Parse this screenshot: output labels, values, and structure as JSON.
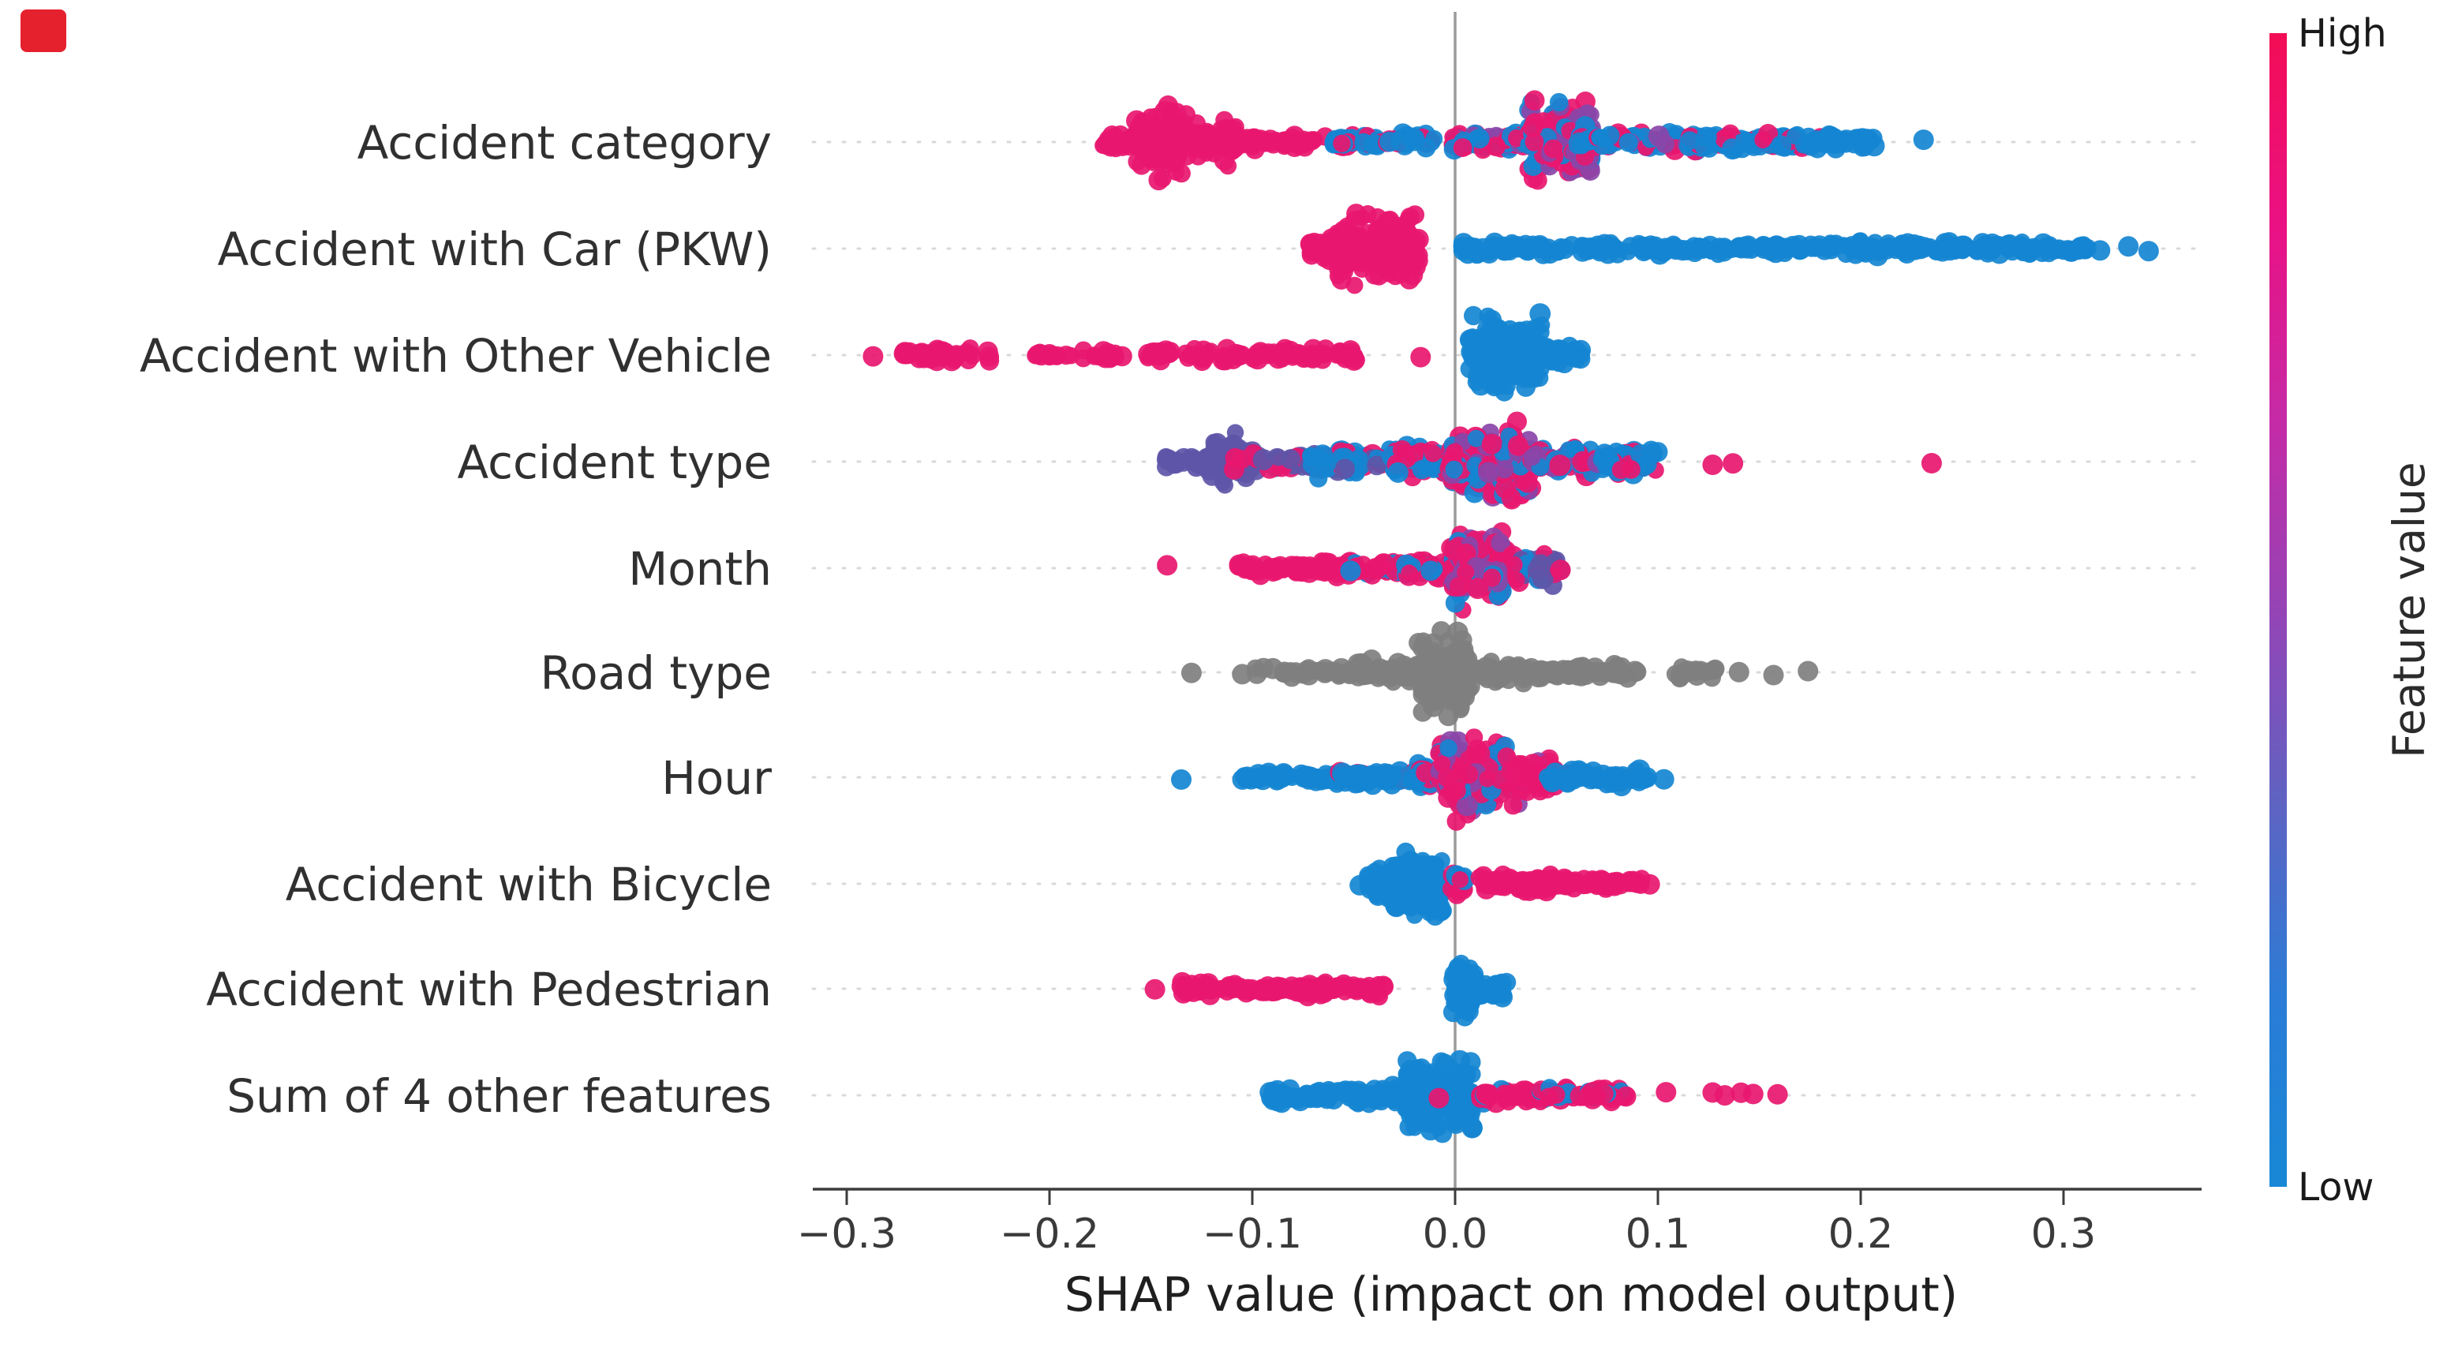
{
  "figure": {
    "corner_marker_color": "#e5212d"
  },
  "chart_data": {
    "type": "beeswarm",
    "title": "",
    "xlabel": "SHAP value (impact on model output)",
    "ylabel": "",
    "x_ticks": [
      -0.3,
      -0.2,
      -0.1,
      0.0,
      0.1,
      0.2,
      0.3
    ],
    "x_tick_labels": [
      "−0.3",
      "−0.2",
      "−0.1",
      "0.0",
      "0.1",
      "0.2",
      "0.3"
    ],
    "xlim": [
      -0.317,
      0.368
    ],
    "grid": "dotted-horizontal-per-feature",
    "zero_line_x": 0.0,
    "colorbar": {
      "label": "Feature value",
      "high_label": "High",
      "low_label": "Low",
      "gradient_top_to_bottom": [
        "#f30d55",
        "#ea1184",
        "#c62aa6",
        "#9544b6",
        "#5f63c2",
        "#2b7cd6",
        "#1887d6"
      ]
    },
    "colors": {
      "pink": "#e8176f",
      "blue": "#1585d1",
      "purple": "#8a45a8",
      "violet": "#5e55a8",
      "gray": "#7f7f7f",
      "axis": "#3c3c3c",
      "zero_line": "#9b9b9b",
      "gridline": "#d9d9d9"
    },
    "features": [
      {
        "name": "Accident category",
        "blobs": [
          {
            "x": -0.145,
            "hw": 0.013,
            "sy": 58,
            "n": 110,
            "c": "pink"
          },
          {
            "x": -0.118,
            "hw": 0.01,
            "sy": 34,
            "n": 55,
            "c": "pink"
          },
          {
            "x": -0.16,
            "hw": 0.014,
            "sy": 14,
            "n": 30,
            "c": "pink"
          },
          {
            "x": -0.09,
            "hw": 0.04,
            "sy": 12,
            "n": 80,
            "c": "pink"
          },
          {
            "x": -0.035,
            "hw": 0.025,
            "sy": 11,
            "n": 60,
            "c": {
              "blue": 0.75,
              "pink": 0.25
            }
          },
          {
            "x": 0.02,
            "hw": 0.022,
            "sy": 16,
            "n": 70,
            "c": {
              "pink": 0.45,
              "blue": 0.35,
              "purple": 0.2
            }
          },
          {
            "x": 0.052,
            "hw": 0.016,
            "sy": 64,
            "n": 150,
            "c": {
              "purple": 0.4,
              "pink": 0.35,
              "blue": 0.25
            }
          },
          {
            "x": 0.09,
            "hw": 0.03,
            "sy": 16,
            "n": 90,
            "c": {
              "blue": 0.6,
              "pink": 0.3,
              "purple": 0.1
            }
          },
          {
            "x": 0.15,
            "hw": 0.035,
            "sy": 13,
            "n": 90,
            "c": {
              "blue": 0.8,
              "pink": 0.2
            }
          },
          {
            "x": 0.195,
            "hw": 0.012,
            "sy": 11,
            "n": 30,
            "c": "blue"
          }
        ],
        "dots": [
          [
            -0.172,
            "pink"
          ],
          [
            0.231,
            "blue"
          ]
        ]
      },
      {
        "name": "Accident with Car (PKW)",
        "blobs": [
          {
            "x": -0.038,
            "hw": 0.02,
            "sy": 58,
            "n": 150,
            "c": "pink"
          },
          {
            "x": -0.06,
            "hw": 0.012,
            "sy": 18,
            "n": 30,
            "c": "pink"
          },
          {
            "x": 0.03,
            "hw": 0.028,
            "sy": 10,
            "n": 55,
            "c": "blue"
          },
          {
            "x": 0.09,
            "hw": 0.03,
            "sy": 10,
            "n": 55,
            "c": "blue"
          },
          {
            "x": 0.15,
            "hw": 0.03,
            "sy": 10,
            "n": 55,
            "c": "blue"
          },
          {
            "x": 0.21,
            "hw": 0.03,
            "sy": 11,
            "n": 60,
            "c": "blue"
          },
          {
            "x": 0.265,
            "hw": 0.025,
            "sy": 11,
            "n": 55,
            "c": "blue"
          },
          {
            "x": 0.3,
            "hw": 0.012,
            "sy": 9,
            "n": 20,
            "c": "blue"
          }
        ],
        "dots": [
          [
            0.318,
            "blue"
          ],
          [
            0.332,
            "blue"
          ],
          [
            0.342,
            "blue"
          ]
        ]
      },
      {
        "name": "Accident with Other Vehicle",
        "blobs": [
          {
            "x": -0.25,
            "hw": 0.022,
            "sy": 10,
            "n": 35,
            "c": "pink"
          },
          {
            "x": -0.185,
            "hw": 0.024,
            "sy": 9,
            "n": 30,
            "c": "pink"
          },
          {
            "x": -0.1,
            "hw": 0.052,
            "sy": 11,
            "n": 85,
            "c": "pink"
          },
          {
            "x": 0.025,
            "hw": 0.018,
            "sy": 60,
            "n": 160,
            "c": "blue"
          },
          {
            "x": 0.052,
            "hw": 0.01,
            "sy": 18,
            "n": 30,
            "c": "blue"
          }
        ],
        "dots": [
          [
            -0.287,
            "pink"
          ],
          [
            -0.017,
            "pink"
          ]
        ]
      },
      {
        "name": "Accident type",
        "blobs": [
          {
            "x": -0.11,
            "hw": 0.013,
            "sy": 40,
            "n": 60,
            "c": "violet"
          },
          {
            "x": -0.125,
            "hw": 0.018,
            "sy": 14,
            "n": 35,
            "c": "violet"
          },
          {
            "x": -0.08,
            "hw": 0.03,
            "sy": 14,
            "n": 60,
            "c": {
              "violet": 0.8,
              "pink": 0.2
            }
          },
          {
            "x": -0.05,
            "hw": 0.022,
            "sy": 26,
            "n": 70,
            "c": {
              "blue": 0.6,
              "pink": 0.25,
              "violet": 0.15
            }
          },
          {
            "x": -0.015,
            "hw": 0.015,
            "sy": 30,
            "n": 60,
            "c": {
              "blue": 0.5,
              "pink": 0.5
            }
          },
          {
            "x": 0.018,
            "hw": 0.02,
            "sy": 66,
            "n": 150,
            "c": {
              "pink": 0.6,
              "purple": 0.2,
              "blue": 0.2
            }
          },
          {
            "x": 0.055,
            "hw": 0.018,
            "sy": 22,
            "n": 70,
            "c": {
              "pink": 0.5,
              "blue": 0.3,
              "purple": 0.2
            }
          },
          {
            "x": 0.085,
            "hw": 0.015,
            "sy": 20,
            "n": 50,
            "c": {
              "blue": 0.7,
              "pink": 0.3
            }
          }
        ],
        "dots": [
          [
            0.127,
            "pink"
          ],
          [
            0.137,
            "pink"
          ],
          [
            0.235,
            "pink"
          ]
        ]
      },
      {
        "name": "Month",
        "blobs": [
          {
            "x": -0.085,
            "hw": 0.022,
            "sy": 10,
            "n": 50,
            "c": "pink"
          },
          {
            "x": -0.045,
            "hw": 0.02,
            "sy": 13,
            "n": 55,
            "c": {
              "pink": 0.8,
              "blue": 0.2
            }
          },
          {
            "x": -0.012,
            "hw": 0.013,
            "sy": 17,
            "n": 45,
            "c": {
              "pink": 0.6,
              "blue": 0.4
            }
          },
          {
            "x": 0.012,
            "hw": 0.014,
            "sy": 62,
            "n": 140,
            "c": {
              "pink": 0.55,
              "purple": 0.3,
              "blue": 0.15
            }
          },
          {
            "x": 0.04,
            "hw": 0.012,
            "sy": 26,
            "n": 50,
            "c": {
              "violet": 0.5,
              "pink": 0.3,
              "blue": 0.2
            }
          }
        ],
        "dots": [
          [
            -0.142,
            "pink"
          ],
          [
            0.052,
            "pink"
          ]
        ]
      },
      {
        "name": "Road type",
        "blobs": [
          {
            "x": -0.075,
            "hw": 0.025,
            "sy": 9,
            "n": 40,
            "c": "gray"
          },
          {
            "x": -0.03,
            "hw": 0.018,
            "sy": 20,
            "n": 60,
            "c": "gray"
          },
          {
            "x": -0.005,
            "hw": 0.013,
            "sy": 62,
            "n": 150,
            "c": "gray"
          },
          {
            "x": 0.025,
            "hw": 0.02,
            "sy": 16,
            "n": 60,
            "c": "gray"
          },
          {
            "x": 0.065,
            "hw": 0.025,
            "sy": 12,
            "n": 60,
            "c": "gray"
          },
          {
            "x": 0.12,
            "hw": 0.012,
            "sy": 9,
            "n": 18,
            "c": "gray"
          }
        ],
        "dots": [
          [
            -0.13,
            "gray"
          ],
          [
            -0.105,
            "gray"
          ],
          [
            0.14,
            "gray"
          ],
          [
            0.157,
            "gray"
          ],
          [
            0.174,
            "gray"
          ]
        ]
      },
      {
        "name": "Hour",
        "blobs": [
          {
            "x": -0.08,
            "hw": 0.025,
            "sy": 11,
            "n": 55,
            "c": "blue"
          },
          {
            "x": -0.04,
            "hw": 0.02,
            "sy": 14,
            "n": 55,
            "c": {
              "blue": 0.85,
              "pink": 0.15
            }
          },
          {
            "x": -0.01,
            "hw": 0.012,
            "sy": 20,
            "n": 40,
            "c": {
              "blue": 0.7,
              "pink": 0.3
            }
          },
          {
            "x": 0.012,
            "hw": 0.02,
            "sy": 64,
            "n": 150,
            "c": {
              "pink": 0.55,
              "purple": 0.25,
              "blue": 0.2
            }
          },
          {
            "x": 0.04,
            "hw": 0.01,
            "sy": 30,
            "n": 45,
            "c": {
              "pink": 0.7,
              "purple": 0.3
            }
          },
          {
            "x": 0.07,
            "hw": 0.025,
            "sy": 13,
            "n": 60,
            "c": {
              "blue": 0.85,
              "pink": 0.15
            }
          }
        ],
        "dots": [
          [
            -0.135,
            "blue"
          ],
          [
            0.103,
            "blue"
          ]
        ]
      },
      {
        "name": "Accident with Bicycle",
        "blobs": [
          {
            "x": -0.018,
            "hw": 0.013,
            "sy": 52,
            "n": 120,
            "c": "blue"
          },
          {
            "x": -0.035,
            "hw": 0.008,
            "sy": 28,
            "n": 40,
            "c": "blue"
          },
          {
            "x": 0.002,
            "hw": 0.004,
            "sy": 20,
            "n": 15,
            "c": {
              "pink": 0.6,
              "blue": 0.4
            }
          },
          {
            "x": 0.03,
            "hw": 0.018,
            "sy": 16,
            "n": 55,
            "c": "pink"
          },
          {
            "x": 0.07,
            "hw": 0.022,
            "sy": 11,
            "n": 55,
            "c": "pink"
          }
        ],
        "dots": [
          [
            -0.047,
            "blue"
          ],
          [
            0.096,
            "pink"
          ]
        ]
      },
      {
        "name": "Accident with Pedestrian",
        "blobs": [
          {
            "x": -0.115,
            "hw": 0.022,
            "sy": 11,
            "n": 50,
            "c": "pink"
          },
          {
            "x": -0.065,
            "hw": 0.03,
            "sy": 12,
            "n": 70,
            "c": "pink"
          },
          {
            "x": 0.004,
            "hw": 0.005,
            "sy": 46,
            "n": 70,
            "c": "blue"
          },
          {
            "x": 0.016,
            "hw": 0.01,
            "sy": 12,
            "n": 25,
            "c": "blue"
          }
        ],
        "dots": [
          [
            -0.148,
            "pink"
          ]
        ]
      },
      {
        "name": "Sum of 4 other features",
        "blobs": [
          {
            "x": -0.07,
            "hw": 0.022,
            "sy": 11,
            "n": 55,
            "c": "blue"
          },
          {
            "x": -0.035,
            "hw": 0.015,
            "sy": 16,
            "n": 50,
            "c": "blue"
          },
          {
            "x": -0.008,
            "hw": 0.017,
            "sy": 64,
            "n": 160,
            "c": "blue"
          },
          {
            "x": 0.03,
            "hw": 0.018,
            "sy": 12,
            "n": 55,
            "c": {
              "pink": 0.85,
              "blue": 0.15
            }
          },
          {
            "x": 0.065,
            "hw": 0.02,
            "sy": 11,
            "n": 50,
            "c": {
              "pink": 0.85,
              "blue": 0.15
            }
          }
        ],
        "dots": [
          [
            -0.008,
            "pink"
          ],
          [
            0.104,
            "pink"
          ],
          [
            0.127,
            "pink"
          ],
          [
            0.133,
            "pink"
          ],
          [
            0.141,
            "pink"
          ],
          [
            0.147,
            "pink"
          ],
          [
            0.159,
            "pink"
          ]
        ]
      }
    ]
  }
}
